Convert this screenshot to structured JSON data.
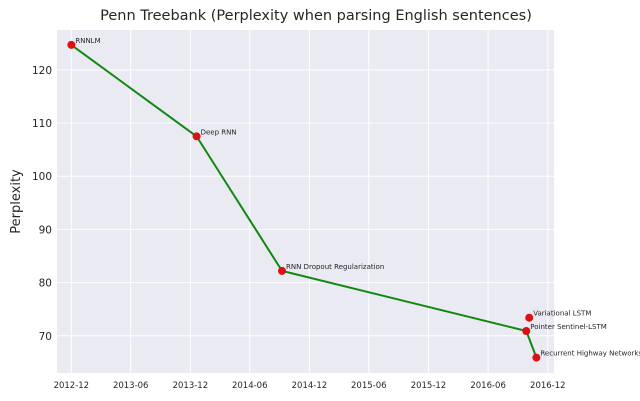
{
  "chart_data": {
    "type": "line",
    "title": "Penn Treebank (Perplexity when parsing English sentences)",
    "xlabel": "",
    "ylabel": "Perplexity",
    "xlim": [
      "2012-10-18",
      "2016-12-20"
    ],
    "ylim": [
      63,
      127.5
    ],
    "yticks": [
      70,
      80,
      90,
      100,
      110,
      120
    ],
    "xticks": [
      "2012-12",
      "2013-06",
      "2013-12",
      "2014-06",
      "2014-12",
      "2015-06",
      "2015-12",
      "2016-06",
      "2016-12"
    ],
    "grid": true,
    "line_color": "#118811",
    "marker_color": "#dd1111",
    "background_color": "#eaeaf2",
    "points": [
      {
        "label": "RNNLM",
        "date": "2012-12-01",
        "value": 124.7,
        "on_line": true
      },
      {
        "label": "Deep RNN",
        "date": "2013-12-20",
        "value": 107.5,
        "on_line": true
      },
      {
        "label": "RNN Dropout Regularization",
        "date": "2014-09-08",
        "value": 82.2,
        "on_line": true
      },
      {
        "label": "Variational LSTM",
        "date": "2016-10-05",
        "value": 73.4,
        "on_line": false
      },
      {
        "label": "Pointer Sentinel-LSTM",
        "date": "2016-09-26",
        "value": 70.9,
        "on_line": true
      },
      {
        "label": "Recurrent Highway Networks",
        "date": "2016-10-27",
        "value": 65.9,
        "on_line": true
      }
    ]
  }
}
